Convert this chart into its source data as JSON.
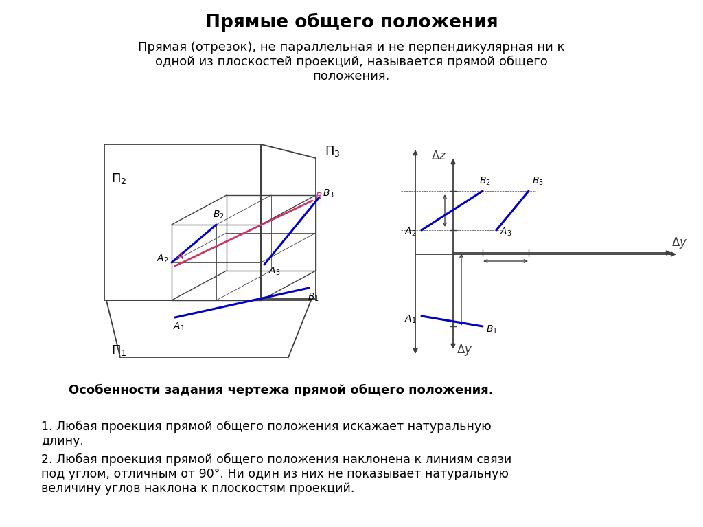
{
  "title": "Прямые общего положения",
  "subtitle": "Прямая (отрезок), не параллельная и не перпендикулярная ни к\nодной из плоскостей проекций, называется прямой общего\nположения.",
  "bottom_title": "Особенности задания чертежа прямой общего положения.",
  "bottom_text1": "1. Любая проекция прямой общего положения искажает натуральную\nдлину.",
  "bottom_text2": "2. Любая проекция прямой общего положения наклонена к линиям связи\nпод углом, отличным от 90°. Ни один из них не показывает натуральную\nвеличину углов наклона к плоскостям проекций.",
  "bg_color": "#ffffff",
  "line_color": "#404040",
  "blue_color": "#0000cc",
  "pink_color": "#cc3366",
  "gray_color": "#999999"
}
